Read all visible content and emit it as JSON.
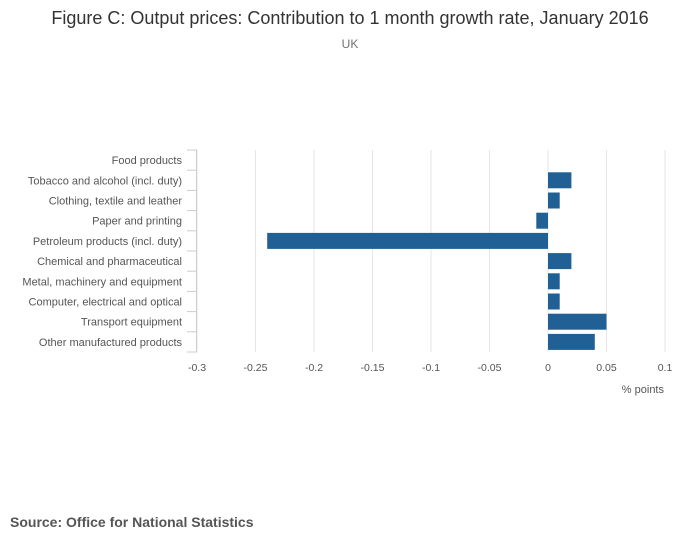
{
  "title": "Figure C: Output prices: Contribution to 1 month growth rate, January 2016",
  "subtitle": "UK",
  "source": "Source: Office for National Statistics",
  "colors": {
    "bar": "#206095",
    "grid": "#e6e6e6",
    "axis": "#cccccc"
  },
  "chart_data": {
    "type": "bar",
    "orientation": "horizontal",
    "title": "Figure C: Output prices: Contribution to 1 month growth rate, January 2016",
    "subtitle": "UK",
    "categories": [
      "Food products",
      "Tobacco and alcohol (incl. duty)",
      "Clothing, textile and leather",
      "Paper and printing",
      "Petroleum products (incl. duty)",
      "Chemical and pharmaceutical",
      "Metal, machinery and equipment",
      "Computer, electrical and optical",
      "Transport equipment",
      "Other manufactured products"
    ],
    "values": [
      0,
      0.02,
      0.01,
      -0.01,
      -0.24,
      0.02,
      0.01,
      0.01,
      0.05,
      0.04
    ],
    "xlabel": "% points",
    "ylabel": "",
    "xlim": [
      -0.3,
      0.1
    ],
    "ticks": [
      -0.3,
      -0.25,
      -0.2,
      -0.15,
      -0.1,
      -0.05,
      0,
      0.05,
      0.1
    ],
    "tick_labels": [
      "-0.3",
      "-0.25",
      "-0.2",
      "-0.15",
      "-0.1",
      "-0.05",
      "0",
      "0.05",
      "0.1"
    ],
    "grid": true
  }
}
